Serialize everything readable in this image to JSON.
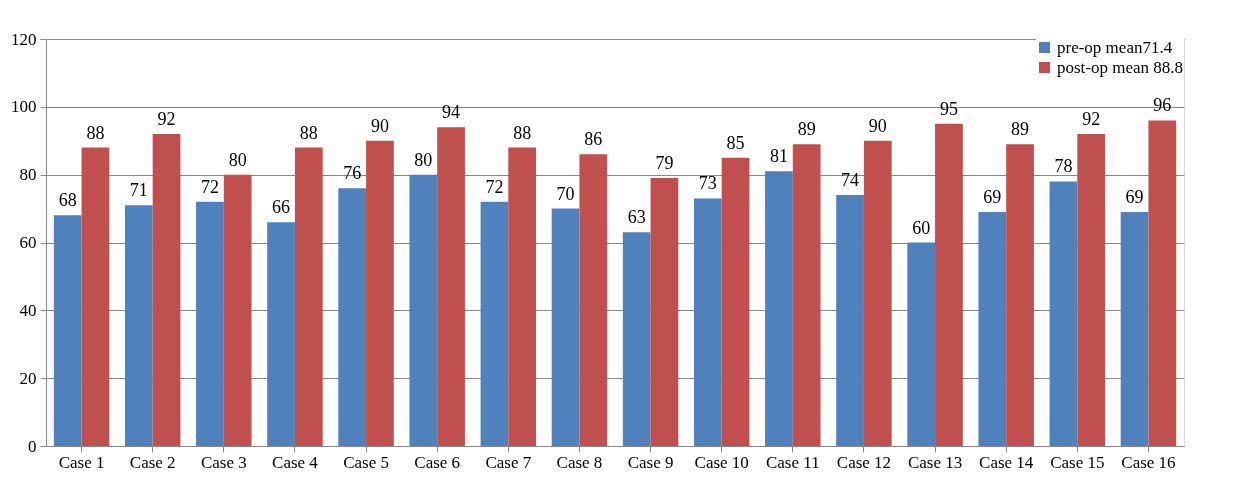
{
  "chart_data": {
    "type": "bar",
    "categories": [
      "Case 1",
      "Case 2",
      "Case 3",
      "Case 4",
      "Case 5",
      "Case 6",
      "Case 7",
      "Case 8",
      "Case 9",
      "Case 10",
      "Case 11",
      "Case 12",
      "Case 13",
      "Case 14",
      "Case 15",
      "Case 16"
    ],
    "series": [
      {
        "name": "pre-op mean71.4",
        "color": "#4f81bd",
        "values": [
          68,
          71,
          72,
          66,
          76,
          80,
          72,
          70,
          63,
          73,
          81,
          74,
          60,
          69,
          78,
          69
        ]
      },
      {
        "name": "post-op mean 88.8",
        "color": "#c0504d",
        "values": [
          88,
          92,
          80,
          88,
          90,
          94,
          88,
          86,
          79,
          85,
          89,
          90,
          95,
          89,
          92,
          96
        ]
      }
    ],
    "ylim": [
      0,
      120
    ],
    "yticks": [
      0,
      20,
      40,
      60,
      80,
      100,
      120
    ],
    "grid": "y",
    "legend": "top right",
    "data_labels": true
  }
}
